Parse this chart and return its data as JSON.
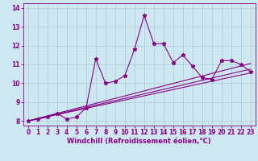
{
  "xlabel": "Windchill (Refroidissement éolien,°C)",
  "ylabel": "",
  "bg_color": "#cde8f0",
  "line_color": "#880088",
  "grid_color": "#b0cfd8",
  "x_data": [
    0,
    1,
    2,
    3,
    4,
    5,
    6,
    7,
    8,
    9,
    10,
    11,
    12,
    13,
    14,
    15,
    16,
    17,
    18,
    19,
    20,
    21,
    22,
    23
  ],
  "y_data": [
    8.0,
    8.1,
    8.2,
    8.4,
    8.1,
    8.2,
    8.7,
    11.3,
    10.0,
    10.1,
    10.4,
    11.8,
    13.6,
    12.1,
    12.1,
    11.1,
    11.5,
    10.9,
    10.3,
    10.2,
    11.2,
    11.2,
    11.0,
    10.6
  ],
  "ylim": [
    7.75,
    14.25
  ],
  "xlim": [
    -0.5,
    23.5
  ],
  "yticks": [
    8,
    9,
    10,
    11,
    12,
    13,
    14
  ],
  "xticks": [
    0,
    1,
    2,
    3,
    4,
    5,
    6,
    7,
    8,
    9,
    10,
    11,
    12,
    13,
    14,
    15,
    16,
    17,
    18,
    19,
    20,
    21,
    22,
    23
  ],
  "trend_lines": [
    {
      "x_start": 0,
      "x_end": 23,
      "y_start": 8.0,
      "y_end": 10.55
    },
    {
      "x_start": 0,
      "x_end": 23,
      "y_start": 8.0,
      "y_end": 10.75
    },
    {
      "x_start": 0,
      "x_end": 23,
      "y_start": 8.0,
      "y_end": 11.05
    }
  ],
  "tick_fontsize": 5.5,
  "xlabel_fontsize": 6.0
}
